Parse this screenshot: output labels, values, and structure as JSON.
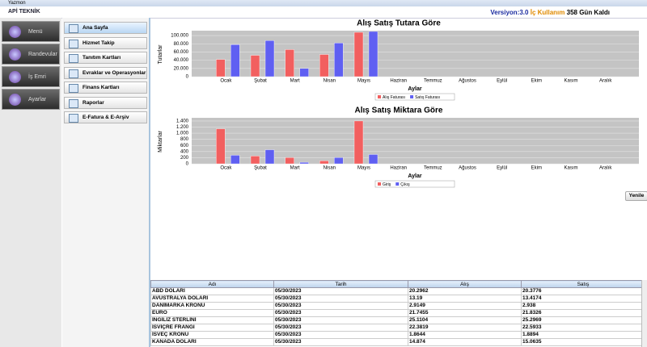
{
  "window": {
    "title": "Yazmon"
  },
  "header": {
    "logo": "APİ TEKNİK",
    "version": "Versiyon:3.0",
    "usage": "İç Kullanım",
    "remaining": "358 Gün Kaldı"
  },
  "sidebar": [
    "Menü",
    "Randevular",
    "İş Emri",
    "Ayarlar"
  ],
  "menu": [
    "Ana Sayfa",
    "Hizmet Takip",
    "Tanıtım Kartları",
    "Evraklar ve Operasyonlar",
    "Finans Kartları",
    "Raporlar",
    "E-Fatura & E-Arşiv"
  ],
  "refresh_button": "Yenile",
  "table": {
    "columns": [
      "Adı",
      "Tarih",
      "Alış",
      "Satış"
    ],
    "rows": [
      [
        "ABD DOLARI",
        "05/30/2023",
        "20.2962",
        "20.3776"
      ],
      [
        "AVUSTRALYA DOLARI",
        "05/30/2023",
        "13.19",
        "13.4174"
      ],
      [
        "DANİMARKA KRONU",
        "05/30/2023",
        "2.9149",
        "2.938"
      ],
      [
        "EURO",
        "05/30/2023",
        "21.7455",
        "21.8326"
      ],
      [
        "İNGİLİZ STERLİNİ",
        "05/30/2023",
        "25.1104",
        "25.2969"
      ],
      [
        "İSVİÇRE FRANGI",
        "05/30/2023",
        "22.3819",
        "22.5933"
      ],
      [
        "İSVEÇ KRONU",
        "05/30/2023",
        "1.8644",
        "1.8894"
      ],
      [
        "KANADA DOLARI",
        "05/30/2023",
        "14.874",
        "15.0635"
      ]
    ]
  },
  "chart_data": [
    {
      "type": "bar",
      "title": "Alış Satış Tutara Göre",
      "x_label": "Aylar",
      "y_label": "Tutarlar",
      "categories": [
        "Ocak",
        "Şubat",
        "Mart",
        "Nisan",
        "Mayıs",
        "Haziran",
        "Temmuz",
        "Ağustos",
        "Eylül",
        "Ekim",
        "Kasım",
        "Aralık"
      ],
      "series": [
        {
          "name": "Alış Faturası",
          "color": "#f25f5f",
          "values": [
            42000,
            52000,
            66000,
            54000,
            108000,
            0,
            0,
            0,
            0,
            0,
            0,
            0
          ]
        },
        {
          "name": "Satış Faturası",
          "color": "#5f5ff2",
          "values": [
            78000,
            88000,
            20000,
            82000,
            110000,
            0,
            0,
            0,
            0,
            0,
            0,
            0
          ]
        }
      ],
      "ylim": [
        0,
        108000
      ],
      "yticks": [
        0,
        {
          "value": 20000,
          "label": "20.000"
        },
        {
          "value": 40000,
          "label": "40.000"
        },
        {
          "value": 60000,
          "label": "60.000"
        },
        {
          "value": 80000,
          "label": "80.000"
        },
        {
          "value": 100000,
          "label": "100.000"
        }
      ],
      "grid": true,
      "legend": "bottom"
    },
    {
      "type": "bar",
      "title": "Alış Satış Miktara Göre",
      "x_label": "Aylar",
      "y_label": "Miktarlar",
      "categories": [
        "Ocak",
        "Şubat",
        "Mart",
        "Nisan",
        "Mayıs",
        "Haziran",
        "Temmuz",
        "Ağustos",
        "Eylül",
        "Ekim",
        "Kasım",
        "Aralık"
      ],
      "series": [
        {
          "name": "Giriş",
          "color": "#f25f5f",
          "values": [
            1145,
            255,
            205,
            100,
            1400,
            0,
            0,
            0,
            0,
            0,
            0,
            0
          ]
        },
        {
          "name": "Çıkış",
          "color": "#5f5ff2",
          "values": [
            280,
            460,
            50,
            205,
            305,
            0,
            0,
            0,
            0,
            0,
            0,
            0
          ]
        }
      ],
      "ylim": [
        0,
        1450
      ],
      "yticks": [
        0,
        200,
        400,
        600,
        {
          "value": 800,
          "label": "800"
        },
        {
          "value": 1000,
          "label": "1.000"
        },
        {
          "value": 1200,
          "label": "1.200"
        },
        {
          "value": 1400,
          "label": "1.400"
        }
      ],
      "grid": true,
      "legend": "bottom"
    }
  ]
}
